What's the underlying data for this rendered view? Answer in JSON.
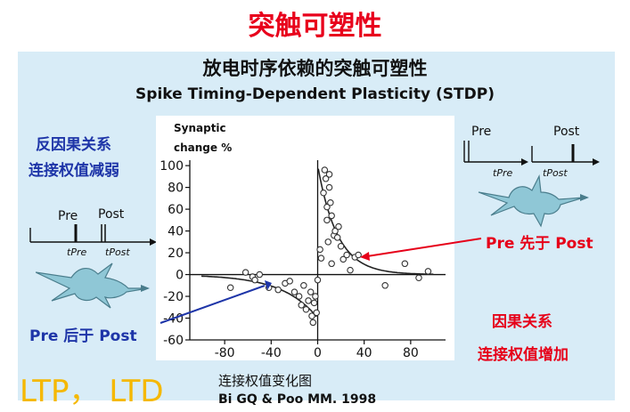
{
  "slide": {
    "title": "突触可塑性",
    "subtitle_cn": "放电时序依赖的突触可塑性",
    "subtitle_en": "Spike Timing-Dependent Plasticity (STDP)",
    "caption": "连接权值变化图",
    "citation": "Bi GQ & Poo MM. 1998",
    "ltp_ltd": "LTP， LTD"
  },
  "left_panel": {
    "line1": "反因果关系",
    "line2": "连接权值减弱",
    "pre_label": "Pre",
    "post_label": "Post",
    "t_pre": "tPre",
    "t_post": "tPost",
    "arrow_label": "Pre 后于 Post"
  },
  "right_panel": {
    "pre_label": "Pre",
    "post_label": "Post",
    "t_pre": "tPre",
    "t_post": "tPost",
    "arrow_label": "Pre 先于 Post",
    "line1": "因果关系",
    "line2": "连接权值增加"
  },
  "colors": {
    "title": "#e8001c",
    "blue_text": "#1e35a8",
    "red_text": "#e60019",
    "panel_bg": "#d8ecf7",
    "ltp": "#f5b800"
  },
  "chart_data": {
    "type": "scatter",
    "title": "",
    "ylabel_line1": "Synaptic",
    "ylabel_line2": "change %",
    "xlabel": "",
    "xlim": [
      -110,
      110
    ],
    "ylim": [
      -60,
      105
    ],
    "xticks": [
      -80,
      -40,
      0,
      40,
      80
    ],
    "yticks": [
      -60,
      -40,
      -20,
      0,
      20,
      40,
      60,
      80,
      100
    ],
    "x_tick_labels": [
      "-80",
      "-40",
      "0",
      "40",
      "80"
    ],
    "y_tick_labels": [
      "-60",
      "-40",
      "-20",
      "0",
      "20",
      "40",
      "60",
      "80",
      "100"
    ],
    "points": [
      {
        "x": -62,
        "y": 2
      },
      {
        "x": -56,
        "y": -2
      },
      {
        "x": -54,
        "y": -5
      },
      {
        "x": -50,
        "y": 0
      },
      {
        "x": -75,
        "y": -12
      },
      {
        "x": -42,
        "y": -12
      },
      {
        "x": -34,
        "y": -14
      },
      {
        "x": -28,
        "y": -8
      },
      {
        "x": -24,
        "y": -6
      },
      {
        "x": -20,
        "y": -16
      },
      {
        "x": -16,
        "y": -20
      },
      {
        "x": -14,
        "y": -28
      },
      {
        "x": -12,
        "y": -10
      },
      {
        "x": -10,
        "y": -32
      },
      {
        "x": -8,
        "y": -24
      },
      {
        "x": -6,
        "y": -16
      },
      {
        "x": -5,
        "y": -38
      },
      {
        "x": -4,
        "y": -44
      },
      {
        "x": -3,
        "y": -26
      },
      {
        "x": -2,
        "y": -20
      },
      {
        "x": -1,
        "y": -35
      },
      {
        "x": 0,
        "y": -5
      },
      {
        "x": 2,
        "y": 23
      },
      {
        "x": 3,
        "y": 15
      },
      {
        "x": 5,
        "y": 75
      },
      {
        "x": 6,
        "y": 96
      },
      {
        "x": 7,
        "y": 88
      },
      {
        "x": 8,
        "y": 62
      },
      {
        "x": 8,
        "y": 50
      },
      {
        "x": 9,
        "y": 30
      },
      {
        "x": 10,
        "y": 92
      },
      {
        "x": 10,
        "y": 80
      },
      {
        "x": 11,
        "y": 66
      },
      {
        "x": 12,
        "y": 54
      },
      {
        "x": 12,
        "y": 10
      },
      {
        "x": 14,
        "y": 36
      },
      {
        "x": 15,
        "y": 40
      },
      {
        "x": 17,
        "y": 34
      },
      {
        "x": 18,
        "y": 44
      },
      {
        "x": 20,
        "y": 26
      },
      {
        "x": 22,
        "y": 14
      },
      {
        "x": 25,
        "y": 18
      },
      {
        "x": 28,
        "y": 4
      },
      {
        "x": 32,
        "y": 16
      },
      {
        "x": 35,
        "y": 18
      },
      {
        "x": 58,
        "y": -10
      },
      {
        "x": 75,
        "y": 10
      },
      {
        "x": 87,
        "y": -3
      },
      {
        "x": 95,
        "y": 3
      }
    ],
    "fit_ltp": {
      "amplitude": 100,
      "tau": 17
    },
    "fit_ltd": {
      "amplitude": -40,
      "tau": 30
    }
  }
}
